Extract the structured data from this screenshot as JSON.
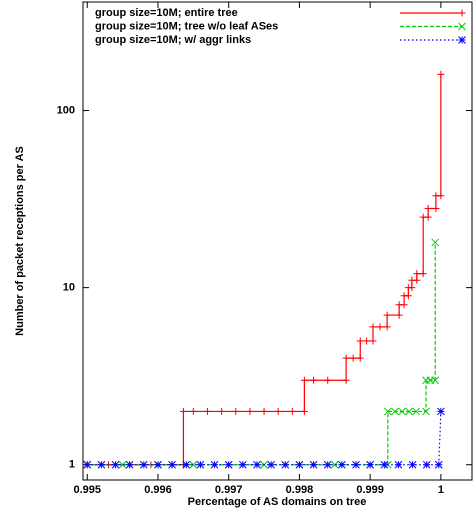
{
  "chart_data": {
    "type": "line",
    "x_label": "Percentage of AS domains on tree",
    "y_label": "Number of packet receptions per AS",
    "xlim": [
      0.99494,
      1.00044
    ],
    "ylim": [
      0.82,
      410
    ],
    "ylog": true,
    "xticks": [
      0.995,
      0.996,
      0.997,
      0.998,
      0.999,
      1
    ],
    "yticks": [
      1,
      10,
      100
    ],
    "series": [
      {
        "name": "group size=10M; entire tree",
        "color": "#ff0000",
        "marker": "plus",
        "x": [
          0.995,
          0.9953,
          0.9956,
          0.9959,
          0.9962,
          0.99636,
          0.99636,
          0.9965,
          0.9967,
          0.9969,
          0.9971,
          0.9973,
          0.9975,
          0.9977,
          0.9979,
          0.99807,
          0.99807,
          0.9982,
          0.9984,
          0.99866,
          0.99866,
          0.99876,
          0.99886,
          0.99886,
          0.99895,
          0.99904,
          0.99904,
          0.99914,
          0.99924,
          0.99924,
          0.99941,
          0.99941,
          0.99948,
          0.99948,
          0.99954,
          0.99954,
          0.99959,
          0.99959,
          0.99966,
          0.99966,
          0.99975,
          0.99975,
          0.99982,
          0.99982,
          0.99993,
          0.99993,
          1.0,
          1.0
        ],
        "values": [
          1,
          1,
          1,
          1,
          1,
          1,
          2,
          2,
          2,
          2,
          2,
          2,
          2,
          2,
          2,
          2,
          3,
          3,
          3,
          3,
          4,
          4,
          4,
          5,
          5,
          5,
          6,
          6,
          6,
          7,
          7,
          8,
          8,
          9,
          9,
          10,
          10,
          11,
          11,
          12,
          12,
          25,
          25,
          28,
          28,
          33,
          33,
          160
        ]
      },
      {
        "name": "group size=10M; tree w/o leaf ASes",
        "color": "#00cc00",
        "marker": "cross",
        "x": [
          0.995,
          0.9955,
          0.996,
          0.9965,
          0.997,
          0.9975,
          0.998,
          0.9985,
          0.999,
          0.99925,
          0.99925,
          0.99935,
          0.99945,
          0.99955,
          0.99965,
          0.99979,
          0.99979,
          0.99985,
          0.99992,
          0.99992
        ],
        "values": [
          1,
          1,
          1,
          1,
          1,
          1,
          1,
          1,
          1,
          1,
          2,
          2,
          2,
          2,
          2,
          2,
          3,
          3,
          3,
          18
        ]
      },
      {
        "name": "group size=10M; w/ aggr links",
        "color": "#0000ff",
        "marker": "star",
        "x": [
          0.995,
          0.9952,
          0.9954,
          0.9956,
          0.9958,
          0.996,
          0.9962,
          0.9964,
          0.9966,
          0.9968,
          0.997,
          0.9972,
          0.9974,
          0.9976,
          0.9978,
          0.998,
          0.9982,
          0.9984,
          0.9986,
          0.9988,
          0.999,
          0.9992,
          0.9994,
          0.9996,
          0.9998,
          0.99997,
          1.0
        ],
        "values": [
          1,
          1,
          1,
          1,
          1,
          1,
          1,
          1,
          1,
          1,
          1,
          1,
          1,
          1,
          1,
          1,
          1,
          1,
          1,
          1,
          1,
          1,
          1,
          1,
          1,
          1,
          2
        ]
      }
    ]
  }
}
